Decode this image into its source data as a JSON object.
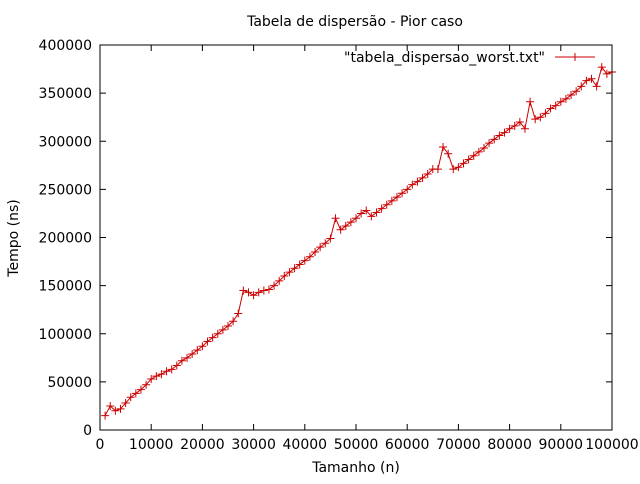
{
  "chart_data": {
    "type": "line",
    "title": "Tabela de dispersão - Pior caso",
    "xlabel": "Tamanho (n)",
    "ylabel": "Tempo (ns)",
    "xlim": [
      0,
      100000
    ],
    "ylim": [
      0,
      400000
    ],
    "x_ticks": [
      0,
      10000,
      20000,
      30000,
      40000,
      50000,
      60000,
      70000,
      80000,
      90000,
      100000
    ],
    "y_ticks": [
      0,
      50000,
      100000,
      150000,
      200000,
      250000,
      300000,
      350000,
      400000
    ],
    "grid": false,
    "legend_position": "top-right",
    "series": [
      {
        "name": "\"tabela_dispersao_worst.txt\"",
        "color": "#cc0000",
        "marker": "plus",
        "points": [
          [
            1000,
            15000
          ],
          [
            2000,
            25000
          ],
          [
            3000,
            20000
          ],
          [
            4000,
            22000
          ],
          [
            5000,
            28000
          ],
          [
            6000,
            34000
          ],
          [
            7000,
            38000
          ],
          [
            8000,
            42000
          ],
          [
            9000,
            47000
          ],
          [
            10000,
            53000
          ],
          [
            11000,
            56000
          ],
          [
            12000,
            58000
          ],
          [
            13000,
            61000
          ],
          [
            14000,
            63000
          ],
          [
            15000,
            67000
          ],
          [
            16000,
            72000
          ],
          [
            17000,
            75000
          ],
          [
            18000,
            79000
          ],
          [
            19000,
            83000
          ],
          [
            20000,
            87000
          ],
          [
            21000,
            92000
          ],
          [
            22000,
            96000
          ],
          [
            23000,
            100000
          ],
          [
            24000,
            104000
          ],
          [
            25000,
            108000
          ],
          [
            26000,
            113000
          ],
          [
            27000,
            121000
          ],
          [
            28000,
            145000
          ],
          [
            29000,
            143000
          ],
          [
            30000,
            140000
          ],
          [
            31000,
            143000
          ],
          [
            32000,
            145000
          ],
          [
            33000,
            146000
          ],
          [
            34000,
            150000
          ],
          [
            35000,
            155000
          ],
          [
            36000,
            160000
          ],
          [
            37000,
            164000
          ],
          [
            38000,
            168000
          ],
          [
            39000,
            172000
          ],
          [
            40000,
            176000
          ],
          [
            41000,
            180000
          ],
          [
            42000,
            185000
          ],
          [
            43000,
            190000
          ],
          [
            44000,
            194000
          ],
          [
            45000,
            199000
          ],
          [
            46000,
            220000
          ],
          [
            47000,
            208000
          ],
          [
            48000,
            212000
          ],
          [
            49000,
            216000
          ],
          [
            50000,
            220000
          ],
          [
            51000,
            225000
          ],
          [
            52000,
            228000
          ],
          [
            53000,
            222000
          ],
          [
            54000,
            226000
          ],
          [
            55000,
            230000
          ],
          [
            56000,
            234000
          ],
          [
            57000,
            238000
          ],
          [
            58000,
            242000
          ],
          [
            59000,
            246000
          ],
          [
            60000,
            250000
          ],
          [
            61000,
            255000
          ],
          [
            62000,
            258000
          ],
          [
            63000,
            262000
          ],
          [
            64000,
            266000
          ],
          [
            65000,
            271000
          ],
          [
            66000,
            271000
          ],
          [
            67000,
            294000
          ],
          [
            68000,
            287000
          ],
          [
            69000,
            271000
          ],
          [
            70000,
            273000
          ],
          [
            71000,
            277000
          ],
          [
            72000,
            281000
          ],
          [
            73000,
            285000
          ],
          [
            74000,
            289000
          ],
          [
            75000,
            293000
          ],
          [
            76000,
            298000
          ],
          [
            77000,
            302000
          ],
          [
            78000,
            306000
          ],
          [
            79000,
            309000
          ],
          [
            80000,
            313000
          ],
          [
            81000,
            316000
          ],
          [
            82000,
            320000
          ],
          [
            83000,
            313000
          ],
          [
            84000,
            341000
          ],
          [
            85000,
            323000
          ],
          [
            86000,
            325000
          ],
          [
            87000,
            329000
          ],
          [
            88000,
            334000
          ],
          [
            89000,
            337000
          ],
          [
            90000,
            341000
          ],
          [
            91000,
            344000
          ],
          [
            92000,
            348000
          ],
          [
            93000,
            352000
          ],
          [
            94000,
            357000
          ],
          [
            95000,
            363000
          ],
          [
            96000,
            365000
          ],
          [
            97000,
            357000
          ],
          [
            98000,
            377000
          ],
          [
            99000,
            370000
          ],
          [
            100000,
            372000
          ]
        ]
      }
    ]
  }
}
